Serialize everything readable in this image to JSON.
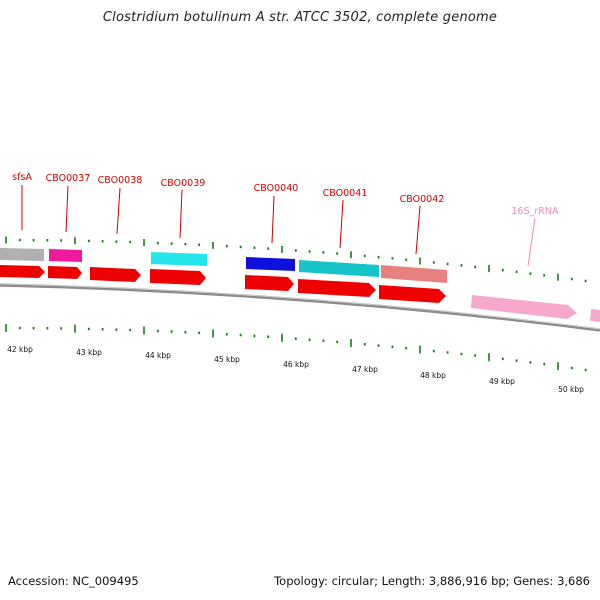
{
  "title": "Clostridium botulinum A str. ATCC 3502, complete genome",
  "footer": {
    "accession": "Accession: NC_009495",
    "topology": "Topology: circular; Length: 3,886,916 bp; Genes: 3,686"
  },
  "colors": {
    "backbone": "#8a8a8a",
    "tick": "#1a7a1a",
    "label_red": "#cc0000",
    "label_pink": "#f08ab8",
    "cds_red": "#ee0000",
    "rrna_pink": "#f7a8cc"
  },
  "gene_labels": [
    "sfsA",
    "CBO0037",
    "CBO0038",
    "CBO0039",
    "CBO0040",
    "CBO0041",
    "CBO0042",
    "16S_rRNA"
  ],
  "kbp_labels": [
    "42 kbp",
    "43 kbp",
    "44 kbp",
    "45 kbp",
    "46 kbp",
    "47 kbp",
    "48 kbp",
    "49 kbp",
    "50 kbp"
  ]
}
